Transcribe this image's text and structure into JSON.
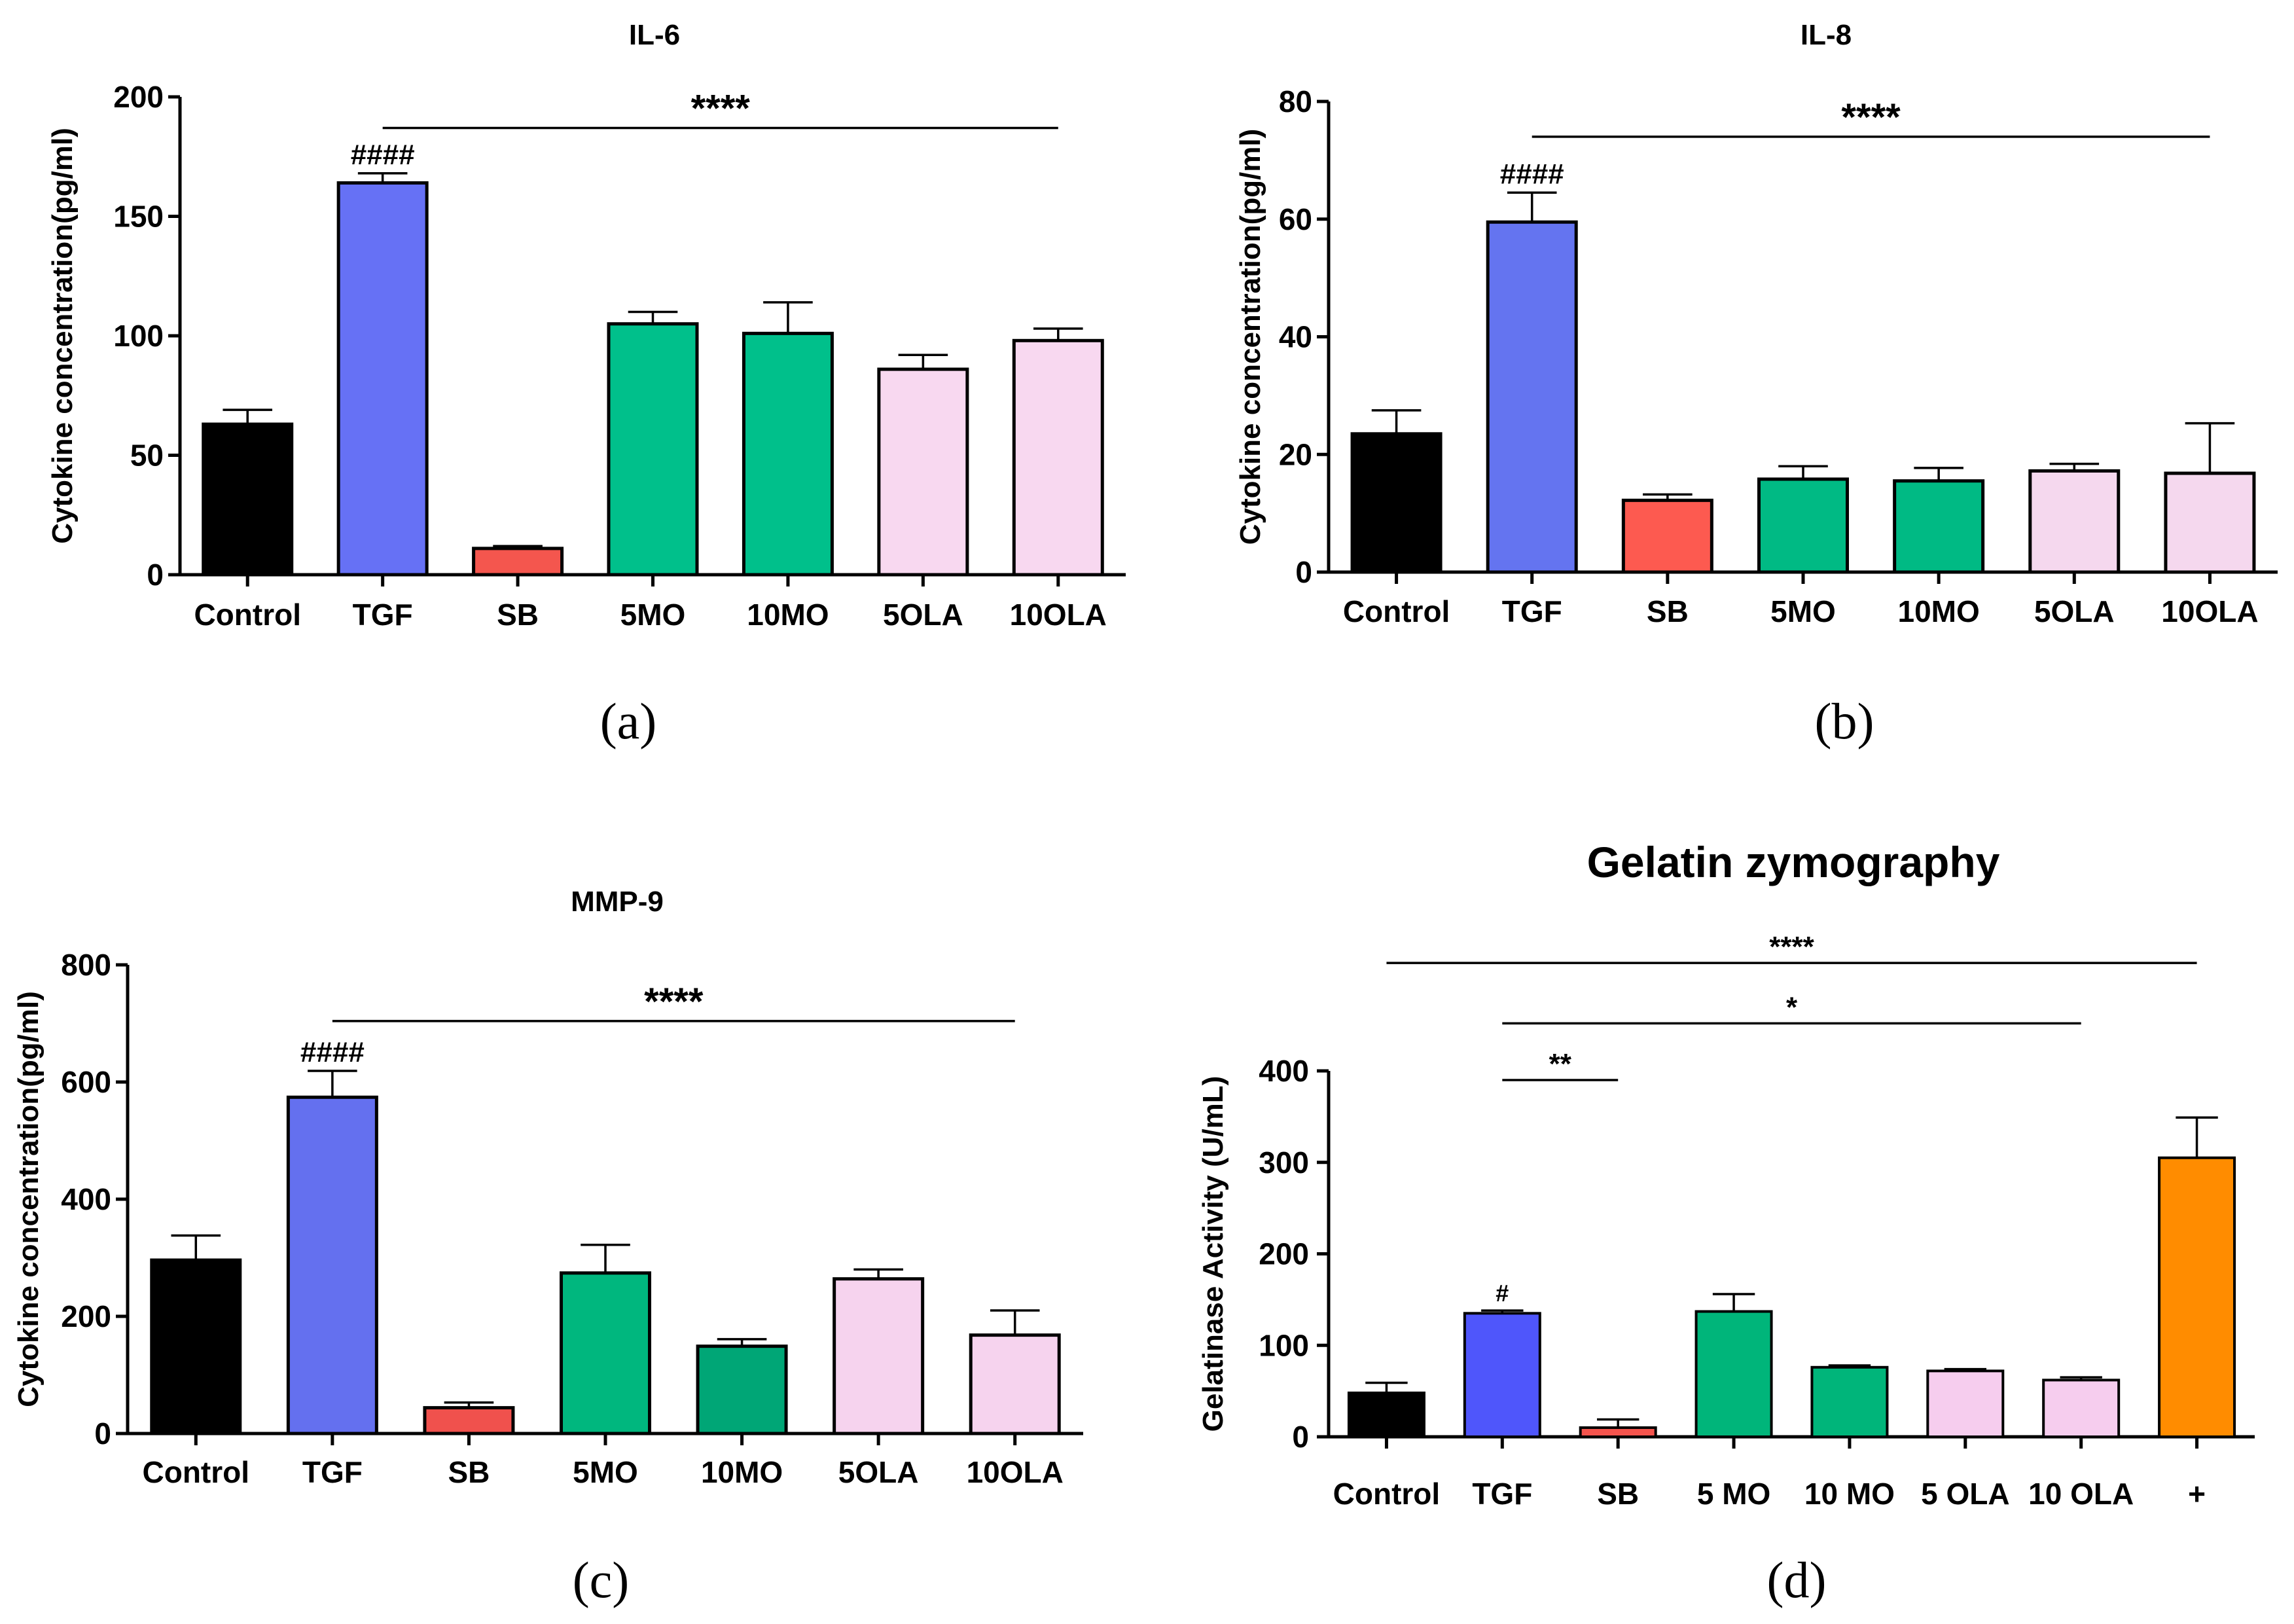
{
  "chart_data": [
    {
      "id": "a",
      "type": "bar",
      "title": "IL-6",
      "panel_label": "(a)",
      "xlabel": "",
      "ylabel": "Cytokine concentration(pg/ml)",
      "ylim": [
        0,
        200
      ],
      "yticks": [
        0,
        50,
        100,
        150,
        200
      ],
      "categories": [
        "Control",
        "TGF",
        "SB",
        "5MO",
        "10MO",
        "5OLA",
        "10OLA"
      ],
      "values": [
        63,
        164,
        11,
        105,
        101,
        86,
        98
      ],
      "errors": [
        6,
        4,
        1,
        5,
        13,
        6,
        5
      ],
      "colors": [
        "#000000",
        "#6671f5",
        "#f4564e",
        "#00c08b",
        "#00c08b",
        "#f8d8f0",
        "#f8d8f0"
      ],
      "hash_marks": [
        {
          "category": "TGF",
          "text": "####"
        }
      ],
      "significance": [
        {
          "from": "TGF",
          "to": "10OLA",
          "level": 187,
          "text": "****"
        }
      ]
    },
    {
      "id": "b",
      "type": "bar",
      "title": "IL-8",
      "panel_label": "(b)",
      "xlabel": "",
      "ylabel": "Cytokine concentration(pg/ml)",
      "ylim": [
        0,
        80
      ],
      "yticks": [
        0,
        20,
        40,
        60,
        80
      ],
      "categories": [
        "Control",
        "TGF",
        "SB",
        "5MO",
        "10MO",
        "5OLA",
        "10OLA"
      ],
      "values": [
        23.5,
        59.5,
        12.2,
        15.8,
        15.5,
        17.2,
        16.8
      ],
      "errors": [
        4,
        5,
        1,
        2.2,
        2.2,
        1.2,
        8.5
      ],
      "colors": [
        "#000000",
        "#6474f0",
        "#fd5a50",
        "#00ba84",
        "#00ba84",
        "#f5d8ee",
        "#f5d8ee"
      ],
      "hash_marks": [
        {
          "category": "TGF",
          "text": "####"
        }
      ],
      "significance": [
        {
          "from": "TGF",
          "to": "10OLA",
          "level": 74,
          "text": "****"
        }
      ]
    },
    {
      "id": "c",
      "type": "bar",
      "title": "MMP-9",
      "panel_label": "(c)",
      "xlabel": "",
      "ylabel": "Cytokine concentration(pg/ml)",
      "ylim": [
        0,
        800
      ],
      "yticks": [
        0,
        200,
        400,
        600,
        800
      ],
      "categories": [
        "Control",
        "TGF",
        "SB",
        "5MO",
        "10MO",
        "5OLA",
        "10OLA"
      ],
      "values": [
        296,
        574,
        44,
        274,
        149,
        264,
        168
      ],
      "errors": [
        42,
        45,
        9,
        48,
        12,
        16,
        42
      ],
      "colors": [
        "#000000",
        "#6470ef",
        "#f0514d",
        "#00b77e",
        "#00a676",
        "#f6d3ee",
        "#f6d3ee"
      ],
      "hash_marks": [
        {
          "category": "TGF",
          "text": "####"
        }
      ],
      "significance": [
        {
          "from": "TGF",
          "to": "10OLA",
          "level": 704,
          "text": "****"
        }
      ]
    },
    {
      "id": "d",
      "type": "bar",
      "title": "Gelatin zymography",
      "panel_label": "(d)",
      "xlabel": "",
      "ylabel": "Gelatinase Activity (U/mL)",
      "ylim": [
        0,
        400
      ],
      "yticks": [
        0,
        100,
        200,
        300,
        400
      ],
      "categories": [
        "Control",
        "TGF",
        "SB",
        "5 MO",
        "10 MO",
        "5 OLA",
        "10 OLA",
        "+"
      ],
      "values": [
        48,
        135,
        10,
        137,
        76,
        72,
        62,
        305
      ],
      "errors": [
        11,
        3,
        9,
        19,
        2,
        2,
        3,
        44
      ],
      "colors": [
        "#000000",
        "#4f56fb",
        "#f4544d",
        "#00b57a",
        "#00b57a",
        "#f6cdee",
        "#f6cdee",
        "#ff8c00"
      ],
      "hash_marks": [
        {
          "category": "TGF",
          "text": "#"
        }
      ],
      "significance": [
        {
          "from": "Control",
          "to": "+",
          "level": 518,
          "text": "****"
        },
        {
          "from": "TGF",
          "to": "10 OLA",
          "level": 452,
          "text": "*"
        },
        {
          "from": "TGF",
          "to": "SB",
          "level": 390,
          "text": "**"
        }
      ]
    }
  ]
}
